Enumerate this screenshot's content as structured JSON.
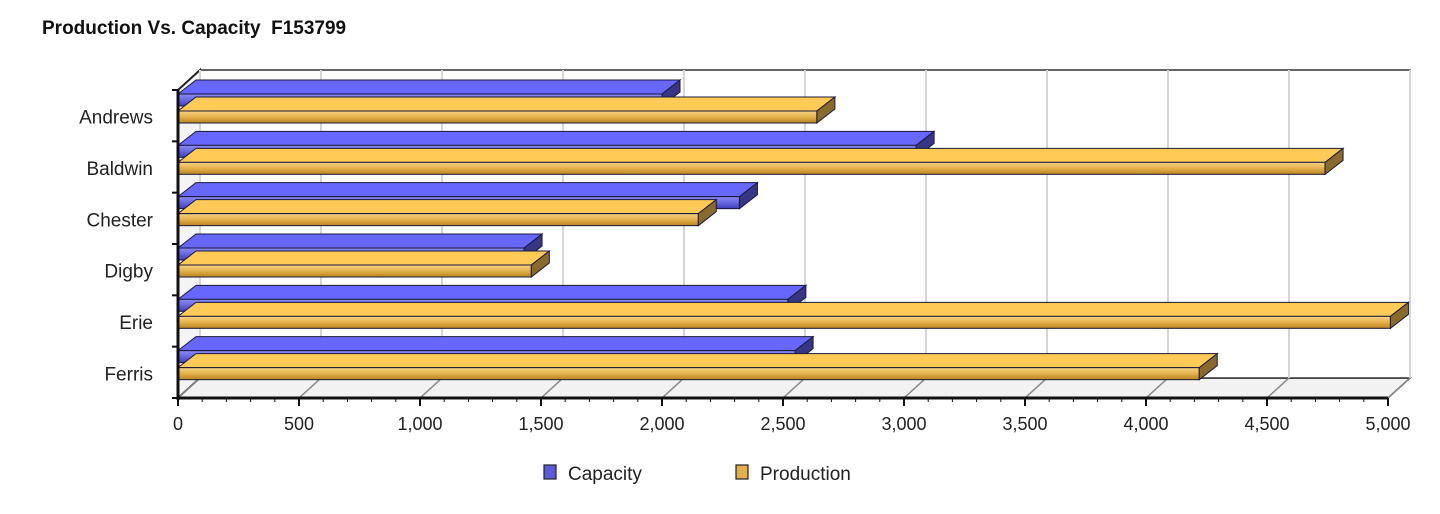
{
  "chart_data": {
    "type": "bar",
    "orientation": "horizontal",
    "title": "Production Vs. Capacity  F153799",
    "categories": [
      "Andrews",
      "Baldwin",
      "Chester",
      "Digby",
      "Erie",
      "Ferris"
    ],
    "series": [
      {
        "name": "Capacity",
        "color": "#5a5adc",
        "values": [
          2000,
          3050,
          2320,
          1430,
          2520,
          2550
        ]
      },
      {
        "name": "Production",
        "color": "#e3b04b",
        "values": [
          2640,
          4740,
          2150,
          1460,
          5010,
          4220
        ]
      }
    ],
    "x_ticks": [
      "0",
      "500",
      "1,000",
      "1,500",
      "2,000",
      "2,500",
      "3,000",
      "3,500",
      "4,000",
      "4,500",
      "5,000"
    ],
    "xlim": [
      0,
      5000
    ],
    "grid": true,
    "legend_position": "bottom-center",
    "style": "3d"
  }
}
